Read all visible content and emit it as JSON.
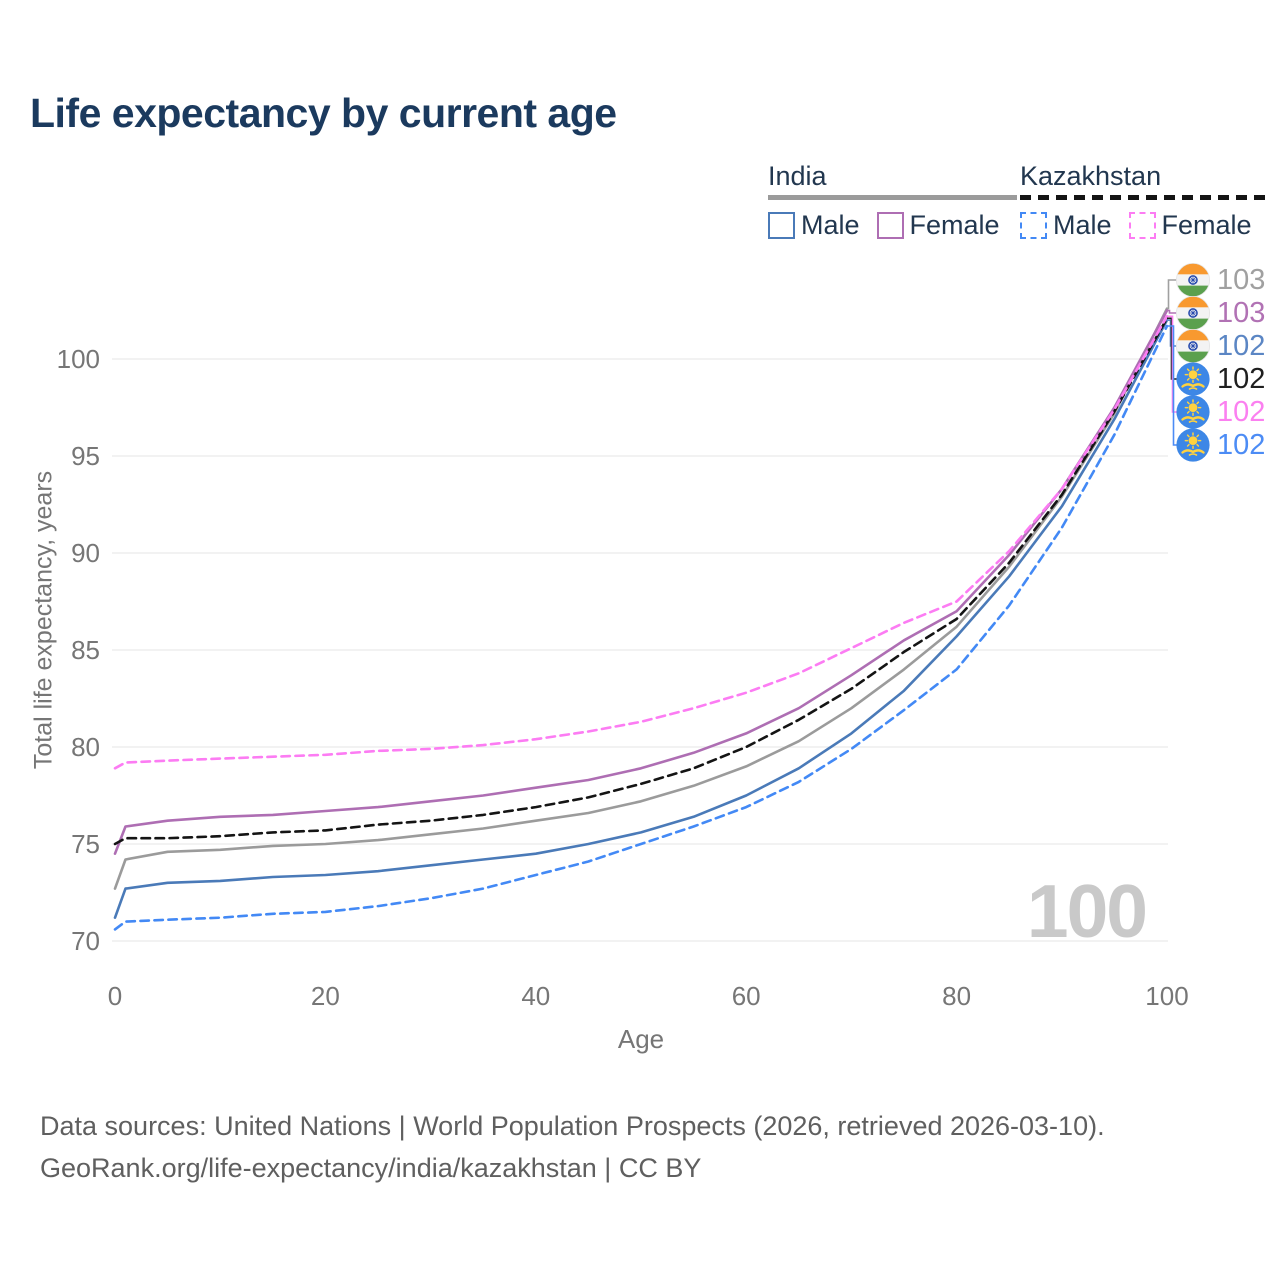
{
  "page": {
    "title": "Life expectancy by current age"
  },
  "legend": {
    "groups": [
      {
        "label": "India",
        "line_style": "solid",
        "underline_color": "#9b9b9b",
        "items": [
          {
            "label": "Male",
            "color": "#4a7ab8",
            "dashed": false
          },
          {
            "label": "Female",
            "color": "#ae6eb3",
            "dashed": false
          }
        ]
      },
      {
        "label": "Kazakhstan",
        "line_style": "dashed",
        "underline_color": "#141414",
        "items": [
          {
            "label": "Male",
            "color": "#4389f5",
            "dashed": true
          },
          {
            "label": "Female",
            "color": "#fc7cf3",
            "dashed": true
          }
        ]
      }
    ]
  },
  "chart_data": {
    "type": "line",
    "title": "Life expectancy by current age",
    "xlabel": "Age",
    "ylabel": "Total life expectancy, years",
    "xticks": [
      0,
      20,
      40,
      60,
      80,
      100
    ],
    "yticks": [
      70,
      75,
      80,
      85,
      90,
      95,
      100
    ],
    "xlim": [
      0,
      100
    ],
    "ylim": [
      70,
      103
    ],
    "grid": "horizontal-only",
    "watermark": "100",
    "x": [
      0,
      1,
      5,
      10,
      15,
      20,
      25,
      30,
      35,
      40,
      45,
      50,
      55,
      60,
      65,
      70,
      75,
      80,
      85,
      90,
      95,
      100
    ],
    "series": [
      {
        "name": "India (both sexes)",
        "country": "India",
        "color": "#9b9b9b",
        "dashed": false,
        "values": [
          72.7,
          74.2,
          74.6,
          74.7,
          74.9,
          75.0,
          75.2,
          75.5,
          75.8,
          76.2,
          76.6,
          77.2,
          78.0,
          79.0,
          80.3,
          82.0,
          84.0,
          86.2,
          89.3,
          92.9,
          97.2,
          102.6
        ]
      },
      {
        "name": "India Female",
        "country": "India",
        "color": "#ae6eb3",
        "dashed": false,
        "values": [
          74.5,
          75.9,
          76.2,
          76.4,
          76.5,
          76.7,
          76.9,
          77.2,
          77.5,
          77.9,
          78.3,
          78.9,
          79.7,
          80.7,
          82.0,
          83.7,
          85.5,
          87.0,
          89.9,
          93.3,
          97.5,
          102.5
        ]
      },
      {
        "name": "India Male",
        "country": "India",
        "color": "#4a7ab8",
        "dashed": false,
        "values": [
          71.2,
          72.7,
          73.0,
          73.1,
          73.3,
          73.4,
          73.6,
          73.9,
          74.2,
          74.5,
          75.0,
          75.6,
          76.4,
          77.5,
          78.9,
          80.7,
          82.9,
          85.7,
          88.8,
          92.4,
          96.9,
          102.0
        ]
      },
      {
        "name": "Kazakhstan (both sexes)",
        "country": "Kazakhstan",
        "color": "#141414",
        "dashed": true,
        "values": [
          75.0,
          75.3,
          75.3,
          75.4,
          75.6,
          75.7,
          76.0,
          76.2,
          76.5,
          76.9,
          77.4,
          78.1,
          78.9,
          80.0,
          81.4,
          83.0,
          84.9,
          86.6,
          89.5,
          93.0,
          97.3,
          102.1
        ]
      },
      {
        "name": "Kazakhstan Female",
        "country": "Kazakhstan",
        "color": "#fc7cf3",
        "dashed": true,
        "values": [
          78.9,
          79.2,
          79.3,
          79.4,
          79.5,
          79.6,
          79.8,
          79.9,
          80.1,
          80.4,
          80.8,
          81.3,
          82.0,
          82.8,
          83.8,
          85.1,
          86.4,
          87.5,
          90.1,
          93.3,
          97.4,
          102.2
        ]
      },
      {
        "name": "Kazakhstan Male",
        "country": "Kazakhstan",
        "color": "#4389f5",
        "dashed": true,
        "values": [
          70.6,
          71.0,
          71.1,
          71.2,
          71.4,
          71.5,
          71.8,
          72.2,
          72.7,
          73.4,
          74.1,
          75.0,
          75.9,
          76.9,
          78.2,
          79.9,
          81.9,
          84.0,
          87.3,
          91.3,
          96.1,
          101.7
        ]
      }
    ],
    "end_labels": [
      {
        "value": "103",
        "flag": "india",
        "series": "India (both sexes)",
        "color": "#a0a0a0"
      },
      {
        "value": "103",
        "flag": "india",
        "series": "India Female",
        "color": "#b172b4"
      },
      {
        "value": "102",
        "flag": "india",
        "series": "India Male",
        "color": "#5b86c4"
      },
      {
        "value": "102",
        "flag": "kazakhstan",
        "series": "Kazakhstan (both sexes)",
        "color": "#1f1f1f"
      },
      {
        "value": "102",
        "flag": "kazakhstan",
        "series": "Kazakhstan Female",
        "color": "#fb80f0"
      },
      {
        "value": "102",
        "flag": "kazakhstan",
        "series": "Kazakhstan Male",
        "color": "#4c8cf5"
      }
    ]
  },
  "footer": {
    "line1": "Data sources: United Nations | World Population Prospects (2026, retrieved 2026-03-10).",
    "line2": "GeoRank.org/life-expectancy/india/kazakhstan | CC BY"
  }
}
